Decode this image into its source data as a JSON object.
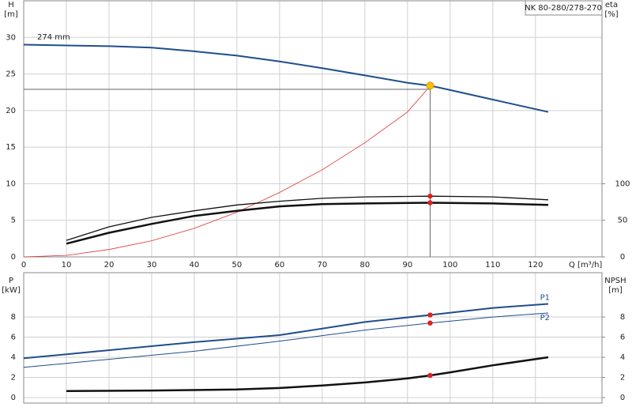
{
  "chart_data": [
    {
      "type": "line",
      "model": "NK 80-280/278-270",
      "annotation": "274 mm",
      "y_label": "H",
      "y_unit": "[m]",
      "y2_label": "eta",
      "y2_unit": "[%]",
      "x_label": "Q [m³/h]",
      "xlim": [
        0,
        135.6
      ],
      "xticks": [
        0,
        10,
        20,
        30,
        40,
        50,
        60,
        70,
        80,
        90,
        100,
        110,
        120
      ],
      "ylim": [
        0,
        35
      ],
      "yticks": [
        0,
        5,
        10,
        15,
        20,
        25,
        30
      ],
      "y2lim": [
        0,
        350
      ],
      "y2ticks": [
        0,
        50,
        100
      ],
      "grid": true,
      "series": [
        {
          "color": "#1f4e8c",
          "width": 2,
          "x": [
            0,
            10,
            20,
            30,
            40,
            50,
            60,
            70,
            80,
            90,
            95.3,
            100,
            110,
            123
          ],
          "values": [
            29,
            28.9,
            28.8,
            28.6,
            28.1,
            27.5,
            26.7,
            25.8,
            24.8,
            23.8,
            23.4,
            22.8,
            21.5,
            19.8
          ]
        },
        {
          "color": "#e03030",
          "width": 0.8,
          "x": [
            0,
            10,
            20,
            30,
            40,
            50,
            60,
            70,
            80,
            90,
            94.5
          ],
          "values": [
            0,
            0.2,
            1,
            2.2,
            3.9,
            6.1,
            8.8,
            11.9,
            15.6,
            19.8,
            22.8
          ]
        },
        {
          "color": "#111",
          "width": 1.3,
          "axis": "y2",
          "x": [
            10,
            20,
            30,
            40,
            50,
            60,
            70,
            80,
            95.3,
            110,
            123
          ],
          "values": [
            22.6,
            41,
            54,
            63,
            71,
            76,
            80,
            82,
            83,
            82,
            78
          ]
        },
        {
          "color": "#111",
          "width": 2.5,
          "axis": "y2",
          "x": [
            10,
            20,
            30,
            40,
            50,
            60,
            70,
            80,
            95.3,
            110,
            123
          ],
          "values": [
            18,
            33,
            45,
            56,
            63,
            69,
            72,
            73,
            74,
            73,
            71
          ]
        }
      ],
      "crosshair": {
        "x": 95.3,
        "y": 22.9
      },
      "points": [
        {
          "x": 95.3,
          "y": 23.4,
          "color": "#f5c400"
        },
        {
          "x": 95.3,
          "y": 83,
          "axis": "y2",
          "color": "#e02020"
        },
        {
          "x": 95.3,
          "y": 74,
          "axis": "y2",
          "color": "#e02020"
        }
      ]
    },
    {
      "type": "line",
      "y_label": "P",
      "y_unit": "[kW]",
      "y2_label": "NPSH",
      "y2_unit": "[m]",
      "xlim": [
        0,
        135.6
      ],
      "ylim": [
        -0.55,
        12.4
      ],
      "yticks": [
        0,
        2,
        4,
        6,
        8
      ],
      "y2lim": [
        -0.55,
        12.4
      ],
      "y2ticks": [
        0,
        2,
        4,
        6,
        8
      ],
      "grid": true,
      "series": [
        {
          "name": "P1",
          "color": "#1f4e8c",
          "width": 2,
          "x": [
            0,
            10,
            40,
            60,
            80,
            95.3,
            110,
            123
          ],
          "values": [
            3.9,
            4.3,
            5.5,
            6.2,
            7.5,
            8.2,
            8.9,
            9.3
          ]
        },
        {
          "name": "P2",
          "color": "#1f4e8c",
          "width": 1,
          "x": [
            0,
            10,
            40,
            60,
            80,
            95.3,
            110,
            123
          ],
          "values": [
            3,
            3.4,
            4.6,
            5.6,
            6.7,
            7.4,
            8,
            8.4
          ]
        },
        {
          "color": "#111",
          "width": 2.5,
          "axis": "y2",
          "x": [
            10,
            30,
            50,
            60,
            70,
            80,
            90,
            95.3,
            100,
            110,
            123
          ],
          "values": [
            0.65,
            0.7,
            0.8,
            0.95,
            1.2,
            1.5,
            1.9,
            2.2,
            2.5,
            3.2,
            4
          ]
        }
      ],
      "points": [
        {
          "x": 95.3,
          "y": 8.2,
          "color": "#e02020"
        },
        {
          "x": 95.3,
          "y": 7.4,
          "color": "#e02020"
        },
        {
          "x": 95.3,
          "y": 2.2,
          "axis": "y2",
          "color": "#e02020"
        }
      ]
    }
  ]
}
